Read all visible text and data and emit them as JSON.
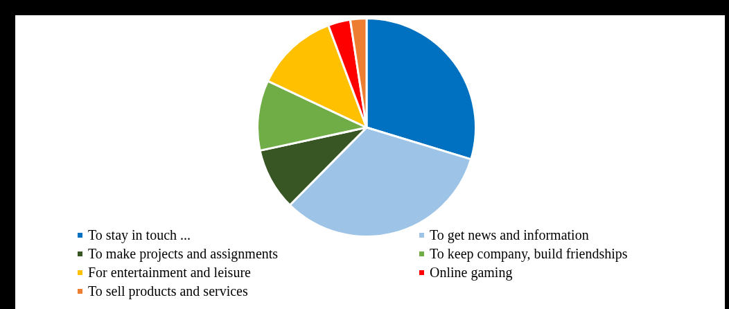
{
  "chart_data": {
    "type": "pie",
    "categories": [
      "To stay in touch ...",
      "To get news and information",
      "To make projects and assignments",
      "To keep company, build friendships",
      "For entertainment and leisure",
      "Online gaming",
      "To sell products and services"
    ],
    "values": [
      29.7,
      32.7,
      9.2,
      10.4,
      12.3,
      3.3,
      2.4
    ],
    "colors": [
      "#0070c0",
      "#9dc3e6",
      "#375623",
      "#70ad47",
      "#ffc000",
      "#ff0000",
      "#ed7d31"
    ],
    "legend": "bottom"
  }
}
